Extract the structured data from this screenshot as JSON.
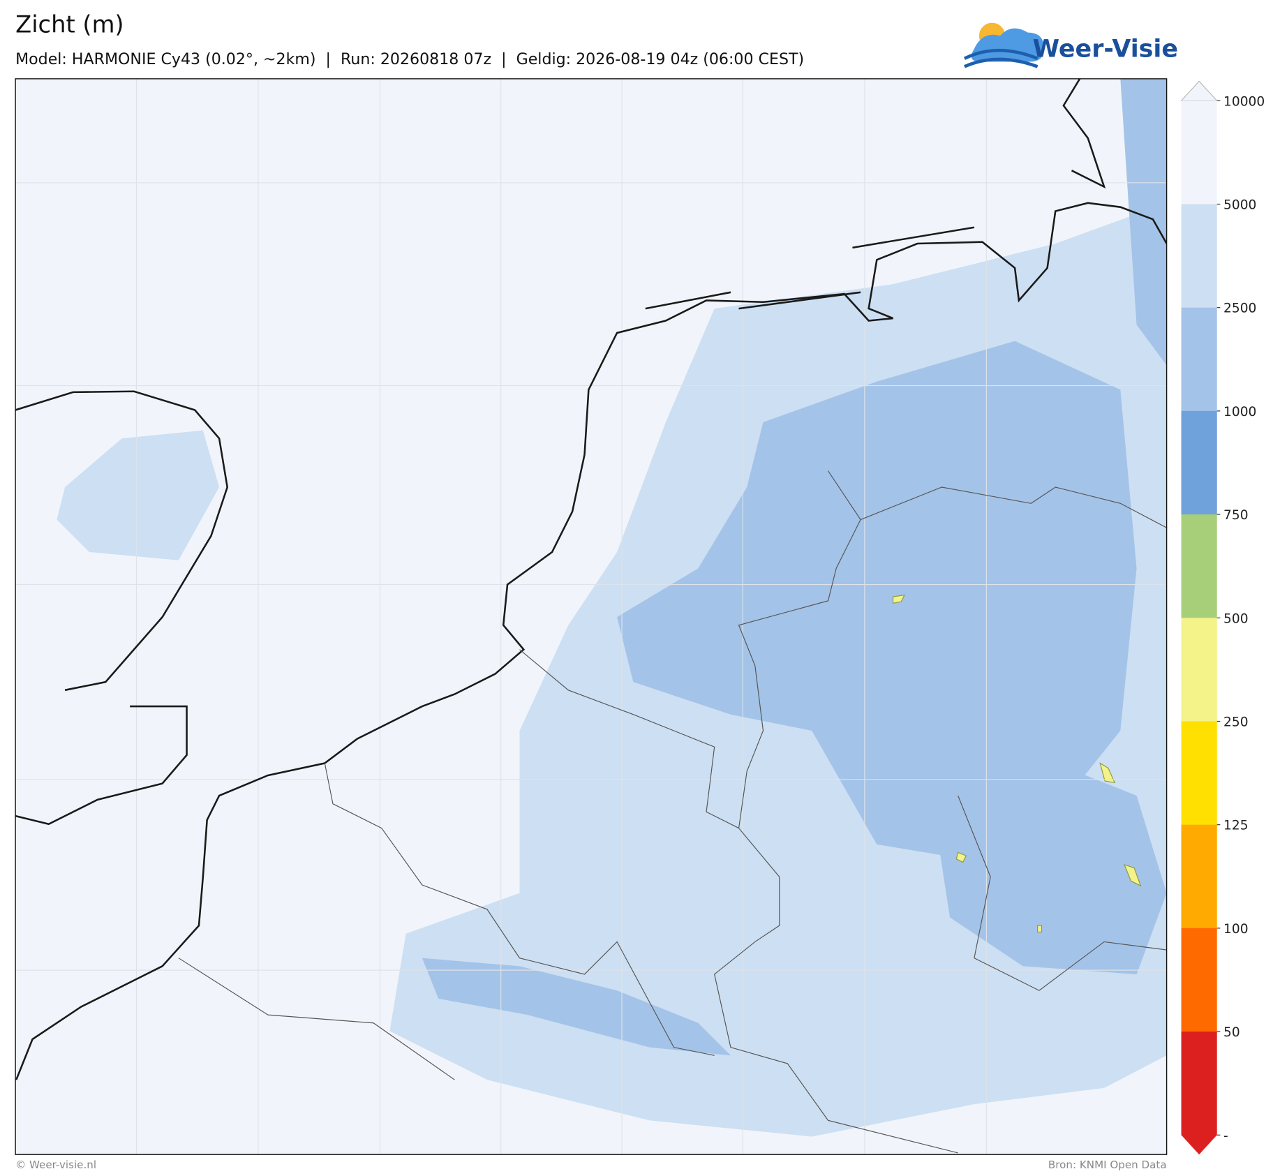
{
  "header": {
    "title": "Zicht (m)",
    "subtitle": "Model: HARMONIE Cy43 (0.02°, ~2km)  |  Run: 20260818 07z  |  Geldig: 2026-08-19 04z (06:00 CEST)",
    "logo": "Weer-Visie"
  },
  "colorbar": {
    "ticks": [
      10000,
      5000,
      2500,
      1000,
      750,
      500,
      250,
      125,
      100,
      50,
      "-"
    ],
    "colors": [
      "#f1f5fb",
      "#cddff2",
      "#a4c3e8",
      "#6fa1da",
      "#a7cf7a",
      "#f4f38a",
      "#ffe000",
      "#ffaa00",
      "#ff6a00",
      "#dc2020"
    ]
  },
  "footer": {
    "left": "© Weer-visie.nl",
    "right": "Bron: KNMI Open Data"
  }
}
